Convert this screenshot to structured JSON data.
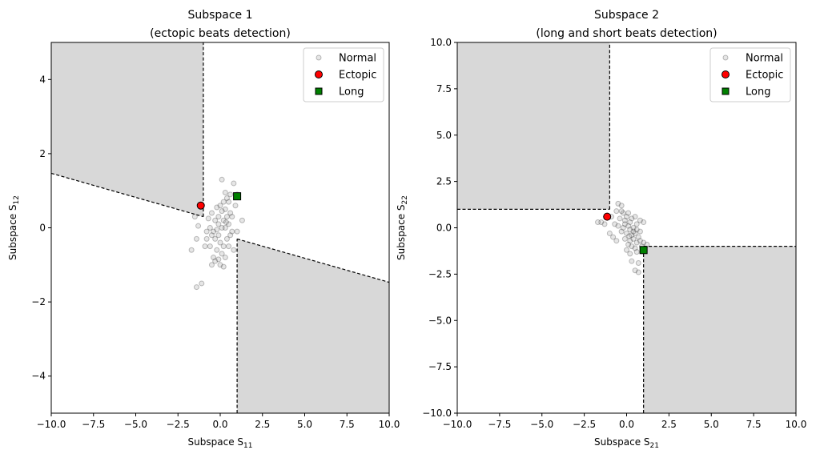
{
  "chart_data": [
    {
      "type": "scatter",
      "title": [
        "Subspace 1",
        "(ectopic beats detection)"
      ],
      "xlabel": {
        "text": "Subspace S",
        "sub": "11"
      },
      "ylabel": {
        "text": "Subspace S",
        "sub": "12"
      },
      "xlim": [
        -10,
        10
      ],
      "ylim": [
        -5,
        5
      ],
      "xticks": [
        -10,
        -7.5,
        -5,
        -2.5,
        0,
        2.5,
        5,
        7.5,
        10
      ],
      "xtick_labels": [
        "−10.0",
        "−7.5",
        "−5.0",
        "−2.5",
        "0.0",
        "2.5",
        "5.0",
        "7.5",
        "10.0"
      ],
      "yticks": [
        -4,
        -2,
        0,
        2,
        4
      ],
      "ytick_labels": [
        "−4",
        "−2",
        "0",
        "2",
        "4"
      ],
      "grid": false,
      "legend_position": "top-right",
      "shaded_regions": [
        [
          [
            -10,
            5
          ],
          [
            -10,
            1.47
          ],
          [
            -1,
            0.3
          ],
          [
            -1,
            5
          ]
        ],
        [
          [
            1,
            -5
          ],
          [
            1,
            -0.3
          ],
          [
            10,
            -1.47
          ],
          [
            10,
            -5
          ]
        ]
      ],
      "series": [
        {
          "name": "Normal",
          "marker": "circle",
          "color": "#808080",
          "points": [
            [
              0.1,
              1.3
            ],
            [
              0.8,
              1.2
            ],
            [
              0.6,
              0.9
            ],
            [
              0.3,
              0.95
            ],
            [
              0.2,
              0.7
            ],
            [
              0.5,
              0.7
            ],
            [
              0.3,
              0.5
            ],
            [
              0.1,
              0.45
            ],
            [
              0.6,
              0.4
            ],
            [
              0.9,
              0.6
            ],
            [
              0.4,
              0.3
            ],
            [
              0.2,
              0.2
            ],
            [
              0.5,
              0.1
            ],
            [
              0.3,
              0.0
            ],
            [
              0.7,
              -0.1
            ],
            [
              -0.1,
              0.3
            ],
            [
              -0.3,
              0.2
            ],
            [
              -0.5,
              0.4
            ],
            [
              -0.7,
              0.25
            ],
            [
              -1.5,
              0.3
            ],
            [
              -1.3,
              0.05
            ],
            [
              -0.6,
              0.0
            ],
            [
              -0.4,
              -0.1
            ],
            [
              -0.2,
              -0.05
            ],
            [
              -0.1,
              -0.2
            ],
            [
              -0.3,
              -0.3
            ],
            [
              -0.5,
              -0.2
            ],
            [
              -0.8,
              -0.1
            ],
            [
              0.0,
              -0.4
            ],
            [
              0.2,
              -0.5
            ],
            [
              0.4,
              -0.3
            ],
            [
              0.6,
              -0.2
            ],
            [
              1.0,
              -0.1
            ],
            [
              1.3,
              0.2
            ],
            [
              0.1,
              -0.7
            ],
            [
              0.3,
              -0.8
            ],
            [
              -0.2,
              -0.6
            ],
            [
              -0.4,
              -0.8
            ],
            [
              -0.8,
              -0.3
            ],
            [
              -0.9,
              -0.5
            ],
            [
              -1.4,
              -0.3
            ],
            [
              -1.7,
              -0.6
            ],
            [
              -0.6,
              -0.5
            ],
            [
              -0.5,
              -1.0
            ],
            [
              -0.3,
              -0.9
            ],
            [
              0.0,
              -1.0
            ],
            [
              0.2,
              -1.05
            ],
            [
              -0.1,
              -0.85
            ],
            [
              0.8,
              -0.6
            ],
            [
              -1.4,
              -1.6
            ],
            [
              -1.1,
              -1.5
            ],
            [
              0.4,
              0.8
            ],
            [
              0.0,
              0.6
            ],
            [
              -0.2,
              0.55
            ],
            [
              0.7,
              0.3
            ],
            [
              1.0,
              0.9
            ],
            [
              0.5,
              -0.5
            ],
            [
              0.1,
              0.0
            ],
            [
              -0.1,
              0.1
            ],
            [
              0.35,
              0.15
            ]
          ]
        },
        {
          "name": "Ectopic",
          "marker": "circle",
          "color": "#ff0000",
          "points": [
            [
              -1.15,
              0.6
            ]
          ]
        },
        {
          "name": "Long",
          "marker": "square",
          "color": "#008000",
          "points": [
            [
              1.0,
              0.85
            ]
          ]
        }
      ]
    },
    {
      "type": "scatter",
      "title": [
        "Subspace 2",
        "(long and short beats detection)"
      ],
      "xlabel": {
        "text": "Subspace S",
        "sub": "21"
      },
      "ylabel": {
        "text": "Subspace S",
        "sub": "22"
      },
      "xlim": [
        -10,
        10
      ],
      "ylim": [
        -10,
        10
      ],
      "xticks": [
        -10,
        -7.5,
        -5,
        -2.5,
        0,
        2.5,
        5,
        7.5,
        10
      ],
      "xtick_labels": [
        "−10.0",
        "−7.5",
        "−5.0",
        "−2.5",
        "0.0",
        "2.5",
        "5.0",
        "7.5",
        "10.0"
      ],
      "yticks": [
        -10,
        -7.5,
        -5,
        -2.5,
        0,
        2.5,
        5,
        7.5,
        10
      ],
      "ytick_labels": [
        "−10.0",
        "−7.5",
        "−5.0",
        "−2.5",
        "0.0",
        "2.5",
        "5.0",
        "7.5",
        "10.0"
      ],
      "grid": false,
      "legend_position": "top-right",
      "shaded_regions": [
        [
          [
            -10,
            10
          ],
          [
            -10,
            1
          ],
          [
            -1,
            1
          ],
          [
            -1,
            10
          ]
        ],
        [
          [
            1,
            -10
          ],
          [
            1,
            -1
          ],
          [
            10,
            -1
          ],
          [
            10,
            -10
          ]
        ]
      ],
      "series": [
        {
          "name": "Normal",
          "marker": "circle",
          "color": "#808080",
          "points": [
            [
              -0.5,
              1.3
            ],
            [
              -0.3,
              1.2
            ],
            [
              -0.6,
              0.9
            ],
            [
              -0.2,
              0.8
            ],
            [
              0.0,
              0.6
            ],
            [
              0.3,
              0.5
            ],
            [
              0.5,
              0.6
            ],
            [
              0.8,
              0.4
            ],
            [
              1.0,
              0.3
            ],
            [
              -0.4,
              0.5
            ],
            [
              -0.1,
              0.4
            ],
            [
              0.2,
              0.3
            ],
            [
              -0.7,
              0.2
            ],
            [
              -1.5,
              0.3
            ],
            [
              -1.7,
              0.3
            ],
            [
              -1.3,
              0.2
            ],
            [
              -1.0,
              -0.3
            ],
            [
              -0.5,
              0.1
            ],
            [
              -0.2,
              0.0
            ],
            [
              0.1,
              0.1
            ],
            [
              0.4,
              0.0
            ],
            [
              0.6,
              -0.1
            ],
            [
              0.8,
              -0.2
            ],
            [
              -0.3,
              -0.2
            ],
            [
              0.0,
              -0.3
            ],
            [
              0.3,
              -0.4
            ],
            [
              0.5,
              -0.3
            ],
            [
              -0.1,
              -0.6
            ],
            [
              0.2,
              -0.7
            ],
            [
              0.4,
              -0.6
            ],
            [
              0.6,
              -0.8
            ],
            [
              0.1,
              -0.9
            ],
            [
              0.3,
              -1.0
            ],
            [
              0.5,
              -1.1
            ],
            [
              0.8,
              -0.7
            ],
            [
              1.0,
              -0.8
            ],
            [
              0.9,
              -1.0
            ],
            [
              1.2,
              -0.9
            ],
            [
              -0.6,
              -0.7
            ],
            [
              -0.8,
              -0.5
            ],
            [
              0.0,
              -1.2
            ],
            [
              0.2,
              -1.4
            ],
            [
              0.6,
              -1.3
            ],
            [
              0.3,
              -1.8
            ],
            [
              0.7,
              -1.9
            ],
            [
              0.5,
              -2.3
            ],
            [
              0.7,
              -2.4
            ],
            [
              -0.9,
              0.6
            ],
            [
              -0.3,
              0.9
            ],
            [
              0.1,
              0.8
            ],
            [
              0.6,
              0.2
            ],
            [
              0.2,
              -0.1
            ],
            [
              -0.1,
              0.2
            ],
            [
              0.4,
              -0.2
            ],
            [
              0.7,
              -0.5
            ],
            [
              0.15,
              -0.45
            ]
          ]
        },
        {
          "name": "Ectopic",
          "marker": "circle",
          "color": "#ff0000",
          "points": [
            [
              -1.15,
              0.6
            ]
          ]
        },
        {
          "name": "Long",
          "marker": "square",
          "color": "#008000",
          "points": [
            [
              1.0,
              -1.2
            ]
          ]
        }
      ]
    }
  ]
}
